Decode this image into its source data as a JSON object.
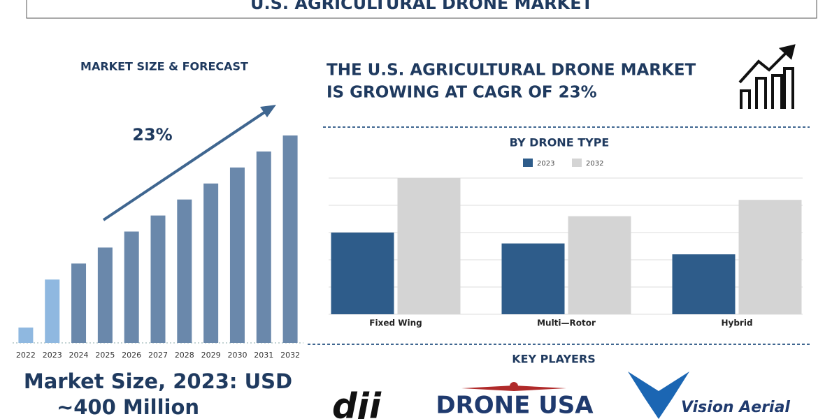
{
  "header": {
    "title": "U.S. AGRICULTURAL DRONE MARKET"
  },
  "headline": [
    "THE U.S. AGRICULTURAL DRONE MARKET",
    "IS GROWING AT CAGR OF 23%"
  ],
  "market_size": [
    "Market Size, 2023: USD",
    "~400 Million"
  ],
  "key_players": {
    "title": "KEY PLAYERS",
    "names": [
      "dji",
      "DRONE USA",
      "Vision Aerial"
    ]
  },
  "chart_data": [
    {
      "type": "bar",
      "title": "MARKET SIZE & FORECAST",
      "annotation": "23%",
      "categories": [
        "2022",
        "2023",
        "2024",
        "2025",
        "2026",
        "2027",
        "2028",
        "2029",
        "2030",
        "2031",
        "2032"
      ],
      "values": [
        22,
        91,
        114,
        137,
        160,
        183,
        206,
        229,
        252,
        275,
        298
      ],
      "colors": [
        "#8fb8e0",
        "#8fb8e0",
        "#6a88ab",
        "#6a88ab",
        "#6a88ab",
        "#6a88ab",
        "#6a88ab",
        "#6a88ab",
        "#6a88ab",
        "#6a88ab",
        "#6a88ab"
      ],
      "ylim": [
        0,
        300
      ]
    },
    {
      "type": "grouped-bar",
      "title": "BY DRONE TYPE",
      "categories": [
        "Fixed Wing",
        "Multi—Rotor",
        "Hybrid"
      ],
      "series": [
        {
          "name": "2023",
          "color": "#2e5c8a",
          "values": [
            3.0,
            2.6,
            2.2
          ]
        },
        {
          "name": "2032",
          "color": "#d4d4d4",
          "values": [
            5.0,
            3.6,
            4.2
          ]
        }
      ],
      "ylim": [
        0,
        5
      ],
      "yticks": [
        0,
        1,
        2,
        3,
        4,
        5
      ],
      "grid": true
    }
  ]
}
